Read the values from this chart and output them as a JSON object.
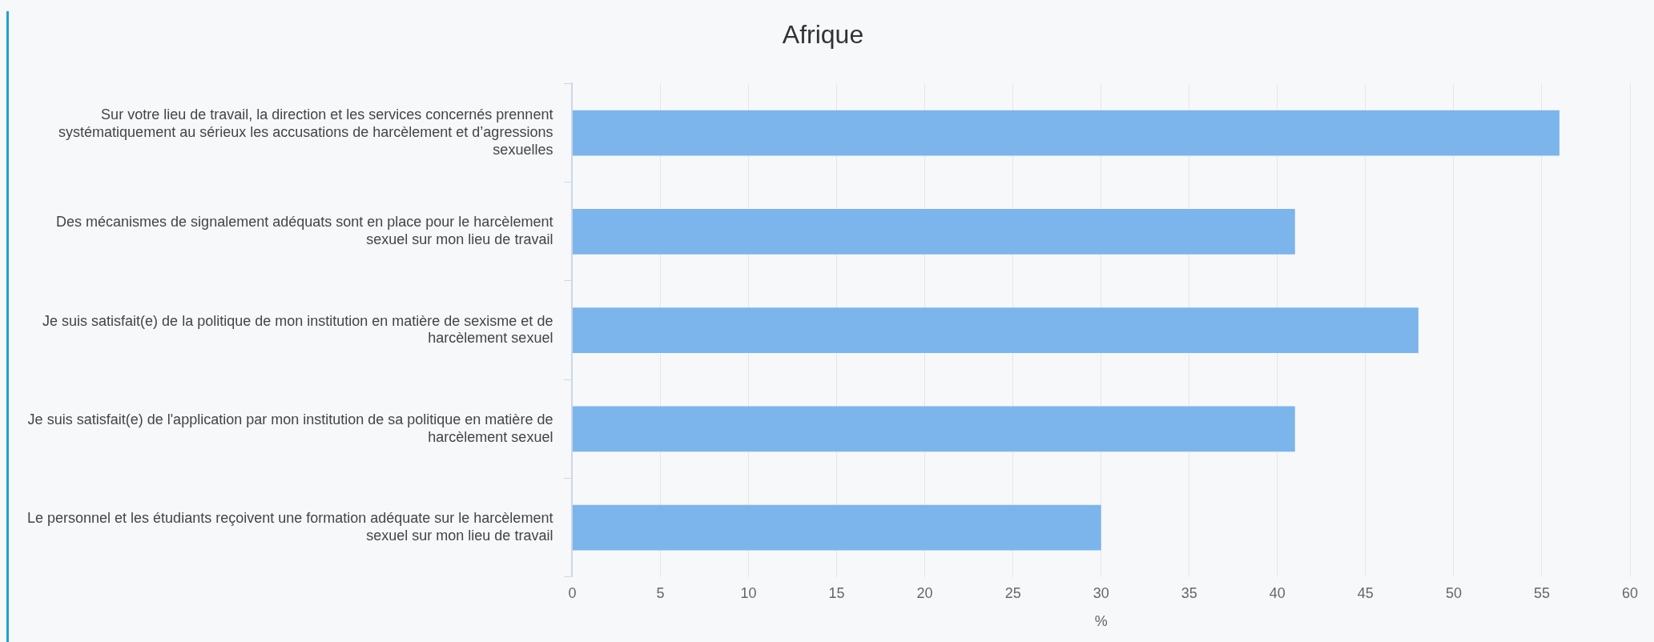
{
  "chart_data": {
    "type": "bar",
    "orientation": "horizontal",
    "title": "Afrique",
    "xlabel": "%",
    "categories": [
      "Sur votre lieu de travail, la direction et les services concernés prennent systématiquement au sérieux les accusations de harcèlement et d’agressions sexuelles",
      "Des mécanismes de signalement adéquats sont en place pour le harcèlement sexuel sur mon lieu de travail",
      "Je suis satisfait(e) de la politique de mon institution en matière de sexisme et de harcèlement sexuel",
      "Je suis satisfait(e) de l'application par mon institution de sa politique en matière de harcèlement sexuel",
      "Le personnel et les étudiants reçoivent une formation adéquate sur le harcèlement sexuel sur mon lieu de travail"
    ],
    "values": [
      56,
      41,
      48,
      41,
      30
    ],
    "color": "#7cb5ec",
    "xlim": [
      0,
      60
    ],
    "xticks": [
      0,
      5,
      10,
      15,
      20,
      25,
      30,
      35,
      40,
      45,
      50,
      55,
      60
    ],
    "grid": "x",
    "legend": false
  }
}
